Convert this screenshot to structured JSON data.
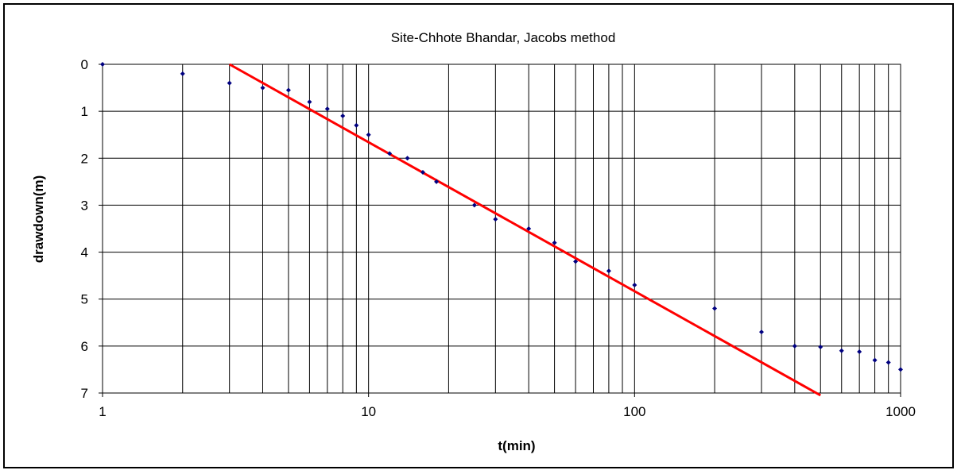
{
  "chart_data": {
    "type": "scatter",
    "title": "Site-Chhote Bhandar, Jacobs method",
    "xlabel": "t(min)",
    "ylabel": "drawdown(m)",
    "x_scale": "log",
    "xlim": [
      1,
      1000
    ],
    "ylim": [
      0,
      7
    ],
    "y_inverted": true,
    "grid": {
      "x_major_minor_vertical": true,
      "y_major_horizontal": true
    },
    "legend": "none",
    "x_tick_labels": [
      "1",
      "10",
      "100",
      "1000"
    ],
    "x_tick_values": [
      1,
      10,
      100,
      1000
    ],
    "y_tick_labels": [
      "0",
      "1",
      "2",
      "3",
      "4",
      "5",
      "6",
      "7"
    ],
    "y_tick_values": [
      0,
      1,
      2,
      3,
      4,
      5,
      6,
      7
    ],
    "series": [
      {
        "type": "scatter",
        "color": "#000080",
        "x": [
          1,
          2,
          3,
          4,
          5,
          6,
          7,
          8,
          9,
          10,
          12,
          14,
          16,
          18,
          25,
          30,
          40,
          50,
          60,
          80,
          100,
          200,
          300,
          400,
          500,
          600,
          700,
          800,
          900,
          1000
        ],
        "y": [
          0,
          0.2,
          0.4,
          0.5,
          0.55,
          0.8,
          0.95,
          1.1,
          1.3,
          1.5,
          1.9,
          2.0,
          2.3,
          2.5,
          3.0,
          3.3,
          3.5,
          3.8,
          4.2,
          4.4,
          4.7,
          5.2,
          5.7,
          6.0,
          6.02,
          6.1,
          6.12,
          6.3,
          6.35,
          6.5
        ]
      },
      {
        "type": "line",
        "color": "#ff0000",
        "x": [
          3,
          500
        ],
        "y": [
          0,
          7.05
        ]
      }
    ]
  }
}
